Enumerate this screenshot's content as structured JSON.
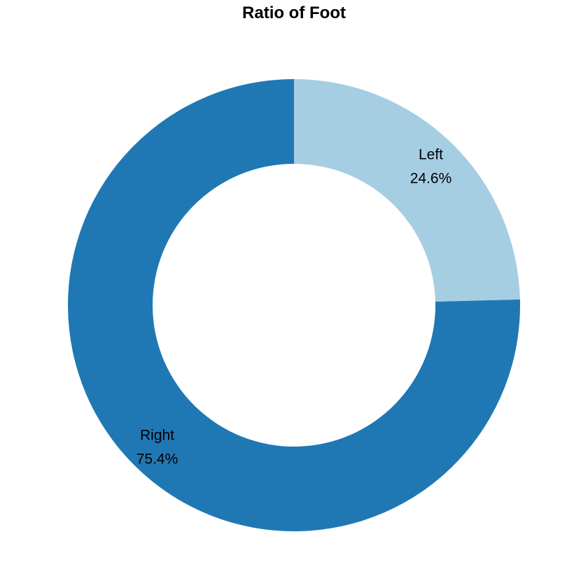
{
  "chart_data": {
    "type": "pie",
    "variant": "donut",
    "title": "Ratio of Foot",
    "categories": [
      "Left",
      "Right"
    ],
    "values": [
      24.6,
      75.4
    ],
    "value_labels": [
      "24.6%",
      "75.4%"
    ],
    "colors": [
      "#a6cee3",
      "#1f78b4"
    ],
    "start_angle": "12 o'clock",
    "direction": "clockwise",
    "legend": "none"
  }
}
